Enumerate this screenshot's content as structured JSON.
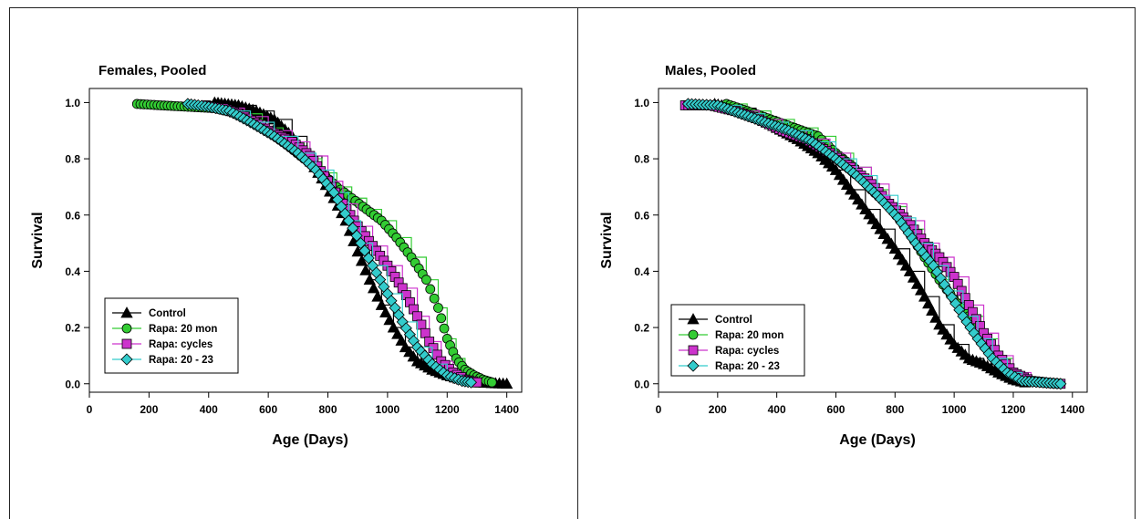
{
  "chart_data": [
    {
      "type": "line",
      "title": "Females, Pooled",
      "xlabel": "Age (Days)",
      "ylabel": "Survival",
      "xlim": [
        0,
        1450
      ],
      "ylim": [
        -0.03,
        1.05
      ],
      "xticks": [
        0,
        200,
        400,
        600,
        800,
        1000,
        1200,
        1400
      ],
      "yticks": [
        0.0,
        0.2,
        0.4,
        0.6,
        0.8,
        1.0
      ],
      "xtick_labels": [
        "0",
        "200",
        "400",
        "600",
        "800",
        "1000",
        "1200",
        "1400"
      ],
      "ytick_labels": [
        "0.0",
        "0.2",
        "0.4",
        "0.6",
        "0.8",
        "1.0"
      ],
      "legend_position": "bottom-left",
      "grid": false,
      "series": [
        {
          "name": "Control",
          "color": "#000000",
          "marker": "triangle",
          "x": [
            420,
            500,
            560,
            620,
            680,
            730,
            780,
            820,
            860,
            900,
            940,
            980,
            1020,
            1060,
            1100,
            1150,
            1200,
            1250,
            1300,
            1400
          ],
          "y": [
            1.0,
            0.99,
            0.97,
            0.94,
            0.88,
            0.81,
            0.73,
            0.66,
            0.58,
            0.47,
            0.37,
            0.28,
            0.2,
            0.13,
            0.08,
            0.05,
            0.03,
            0.015,
            0.005,
            0.0
          ]
        },
        {
          "name": "Rapa: 20 mon",
          "color": "#33cc33",
          "marker": "circle",
          "x": [
            160,
            240,
            330,
            420,
            500,
            580,
            650,
            720,
            780,
            830,
            880,
            930,
            980,
            1030,
            1080,
            1130,
            1170,
            1200,
            1230,
            1260,
            1290,
            1320,
            1350
          ],
          "y": [
            0.995,
            0.99,
            0.985,
            0.98,
            0.96,
            0.91,
            0.86,
            0.8,
            0.75,
            0.7,
            0.66,
            0.62,
            0.58,
            0.52,
            0.45,
            0.37,
            0.27,
            0.16,
            0.09,
            0.05,
            0.03,
            0.015,
            0.005
          ]
        },
        {
          "name": "Rapa: cycles",
          "color": "#cc33cc",
          "marker": "square",
          "x": [
            390,
            450,
            520,
            600,
            680,
            740,
            800,
            850,
            900,
            950,
            1000,
            1050,
            1100,
            1140,
            1180,
            1220,
            1260,
            1300
          ],
          "y": [
            0.99,
            0.98,
            0.95,
            0.9,
            0.86,
            0.81,
            0.72,
            0.64,
            0.56,
            0.49,
            0.42,
            0.34,
            0.24,
            0.15,
            0.08,
            0.04,
            0.015,
            0.005
          ]
        },
        {
          "name": "Rapa: 20 - 23",
          "color": "#33cccc",
          "marker": "diamond",
          "x": [
            330,
            400,
            470,
            540,
            620,
            700,
            760,
            820,
            870,
            910,
            950,
            1000,
            1050,
            1100,
            1150,
            1200,
            1250,
            1280
          ],
          "y": [
            0.995,
            0.985,
            0.97,
            0.93,
            0.88,
            0.82,
            0.76,
            0.68,
            0.58,
            0.5,
            0.42,
            0.32,
            0.22,
            0.13,
            0.07,
            0.03,
            0.01,
            0.005
          ]
        }
      ]
    },
    {
      "type": "line",
      "title": "Males, Pooled",
      "xlabel": "Age (Days)",
      "ylabel": "Survival",
      "xlim": [
        0,
        1450
      ],
      "ylim": [
        -0.03,
        1.05
      ],
      "xticks": [
        0,
        200,
        400,
        600,
        800,
        1000,
        1200,
        1400
      ],
      "yticks": [
        0.0,
        0.2,
        0.4,
        0.6,
        0.8,
        1.0
      ],
      "xtick_labels": [
        "0",
        "200",
        "400",
        "600",
        "800",
        "1000",
        "1200",
        "1400"
      ],
      "ytick_labels": [
        "0.0",
        "0.2",
        "0.4",
        "0.6",
        "0.8",
        "1.0"
      ],
      "legend_position": "bottom-left",
      "grid": false,
      "series": [
        {
          "name": "Control",
          "color": "#000000",
          "marker": "triangle",
          "x": [
            190,
            260,
            330,
            400,
            470,
            540,
            600,
            650,
            700,
            750,
            800,
            850,
            900,
            950,
            1000,
            1050,
            1100,
            1150,
            1200,
            1240
          ],
          "y": [
            0.995,
            0.98,
            0.95,
            0.91,
            0.87,
            0.82,
            0.76,
            0.69,
            0.62,
            0.55,
            0.48,
            0.4,
            0.31,
            0.21,
            0.14,
            0.09,
            0.07,
            0.04,
            0.015,
            0.005
          ]
        },
        {
          "name": "Rapa: 20 mon",
          "color": "#33cc33",
          "marker": "circle",
          "x": [
            230,
            300,
            380,
            460,
            540,
            600,
            660,
            720,
            780,
            840,
            900,
            950,
            1000,
            1050,
            1100,
            1150,
            1200,
            1240
          ],
          "y": [
            0.995,
            0.97,
            0.94,
            0.91,
            0.88,
            0.82,
            0.77,
            0.69,
            0.63,
            0.55,
            0.45,
            0.37,
            0.3,
            0.24,
            0.16,
            0.09,
            0.03,
            0.01
          ]
        },
        {
          "name": "Rapa: cycles",
          "color": "#cc33cc",
          "marker": "square",
          "x": [
            90,
            180,
            260,
            340,
            420,
            500,
            580,
            650,
            720,
            780,
            840,
            900,
            950,
            1000,
            1050,
            1100,
            1150,
            1200,
            1260,
            1320,
            1360
          ],
          "y": [
            0.99,
            0.99,
            0.97,
            0.94,
            0.9,
            0.87,
            0.82,
            0.77,
            0.71,
            0.64,
            0.58,
            0.5,
            0.45,
            0.38,
            0.28,
            0.18,
            0.1,
            0.04,
            0.01,
            0.003,
            0.0
          ]
        },
        {
          "name": "Rapa: 20 - 23",
          "color": "#33cccc",
          "marker": "diamond",
          "x": [
            100,
            200,
            280,
            360,
            440,
            520,
            600,
            670,
            740,
            810,
            870,
            930,
            980,
            1030,
            1080,
            1130,
            1180,
            1230,
            1360
          ],
          "y": [
            0.995,
            0.99,
            0.96,
            0.93,
            0.9,
            0.86,
            0.8,
            0.74,
            0.67,
            0.59,
            0.5,
            0.42,
            0.33,
            0.24,
            0.16,
            0.09,
            0.04,
            0.01,
            0.0
          ]
        }
      ]
    }
  ]
}
